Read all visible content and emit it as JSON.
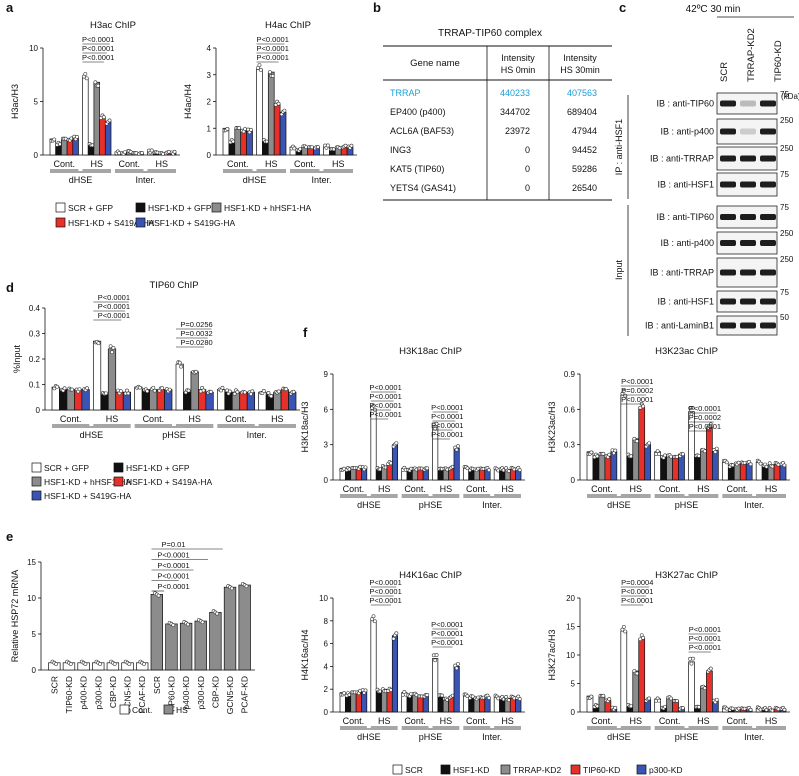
{
  "panel_letters": [
    "a",
    "b",
    "c",
    "d",
    "e",
    "f"
  ],
  "colors": {
    "SCR": "#ffffff",
    "HSF1-KD": "#111111",
    "grey": "#8c8c8c",
    "red": "#e8302a",
    "blue": "#3a54b4",
    "highlight": "#1aa0d6"
  },
  "legend_a": [
    {
      "label": "SCR + GFP",
      "color": "#ffffff"
    },
    {
      "label": "HSF1-KD + GFP",
      "color": "#111111"
    },
    {
      "label": "HSF1-KD + hHSF1-HA",
      "color": "#8c8c8c"
    },
    {
      "label": "HSF1-KD + S419A-HA",
      "color": "#e8302a"
    },
    {
      "label": "HSF1-KD + S419G-HA",
      "color": "#3a54b4"
    }
  ],
  "legend_d": [
    {
      "label": "SCR + GFP",
      "color": "#ffffff"
    },
    {
      "label": "HSF1-KD + GFP",
      "color": "#111111"
    },
    {
      "label": "HSF1-KD + hHSF1-HA",
      "color": "#8c8c8c"
    },
    {
      "label": "HSF1-KD + S419A-HA",
      "color": "#e8302a"
    },
    {
      "label": "HSF1-KD + S419G-HA",
      "color": "#3a54b4"
    }
  ],
  "legend_e": [
    {
      "label": "Cont.",
      "color": "#ffffff"
    },
    {
      "label": "HS",
      "color": "#8c8c8c"
    }
  ],
  "legend_f": [
    {
      "label": "SCR",
      "color": "#ffffff"
    },
    {
      "label": "HSF1-KD",
      "color": "#111111"
    },
    {
      "label": "TRRAP-KD2",
      "color": "#8c8c8c"
    },
    {
      "label": "TIP60-KD",
      "color": "#e8302a"
    },
    {
      "label": "p300-KD",
      "color": "#3a54b4"
    }
  ],
  "table_b": {
    "title": "TRRAP-TIP60 complex",
    "headers": [
      "Gene name",
      "Intensity HS 0min",
      "Intensity HS 30min"
    ],
    "rows": [
      [
        "TRRAP",
        "440233",
        "407563"
      ],
      [
        "EP400 (p400)",
        "344702",
        "689404"
      ],
      [
        "ACL6A (BAF53)",
        "23972",
        "47944"
      ],
      [
        "ING3",
        "0",
        "94452"
      ],
      [
        "KAT5 (TIP60)",
        "0",
        "59286"
      ],
      [
        "YETS4 (GAS41)",
        "0",
        "26540"
      ]
    ]
  },
  "blot_c": {
    "title": "42ºC 30 min",
    "lanes": [
      "SCR",
      "TRRAP-KD2",
      "TIP60-KD"
    ],
    "kda_label": "(kDa)",
    "ip_label": "IP : anti-HSF1",
    "input_label": "Input",
    "rows": [
      {
        "label": "IB : anti-TIP60",
        "marker": "75"
      },
      {
        "label": "IB : anti-p400",
        "marker": "250"
      },
      {
        "label": "IB : anti-TRRAP",
        "marker": "250"
      },
      {
        "label": "IB : anti-HSF1",
        "marker": "75"
      },
      {
        "label": "IB : anti-TIP60",
        "marker": "75"
      },
      {
        "label": "IB : anti-p400",
        "marker": "250"
      },
      {
        "label": "IB : anti-TRRAP",
        "marker": "250"
      },
      {
        "label": "IB : anti-HSF1",
        "marker": "75"
      },
      {
        "label": "IB : anti-LaminB1",
        "marker": "50"
      }
    ]
  },
  "chart_data": [
    {
      "id": "a1",
      "type": "bar",
      "title": "H3ac ChIP",
      "ylabel": "H3ac/H3",
      "ylim": [
        0,
        10
      ],
      "yticks": [
        "0",
        "5",
        "10"
      ],
      "groups": [
        "Cont.",
        "HS",
        "Cont.",
        "HS"
      ],
      "regions": [
        "dHSE",
        "Inter."
      ],
      "series": [
        {
          "name": "SCR + GFP",
          "values": [
            1.5,
            7.2,
            0.3,
            0.3
          ]
        },
        {
          "name": "HSF1-KD + GFP",
          "values": [
            1.0,
            0.9,
            0.2,
            0.2
          ]
        },
        {
          "name": "HSF1-KD + hHSF1-HA",
          "values": [
            1.5,
            6.8,
            0.3,
            0.2
          ]
        },
        {
          "name": "HSF1-KD + S419A-HA",
          "values": [
            1.4,
            3.5,
            0.2,
            0.2
          ]
        },
        {
          "name": "HSF1-KD + S419G-HA",
          "values": [
            1.6,
            3.1,
            0.2,
            0.2
          ]
        }
      ],
      "pvalues": [
        "P<0.0001",
        "P<0.0001",
        "P<0.0001"
      ]
    },
    {
      "id": "a2",
      "type": "bar",
      "title": "H4ac ChIP",
      "ylabel": "H4ac/H4",
      "ylim": [
        0,
        4
      ],
      "yticks": [
        "0",
        "1",
        "2",
        "3",
        "4"
      ],
      "groups": [
        "Cont.",
        "HS",
        "Cont.",
        "HS"
      ],
      "regions": [
        "dHSE",
        "Inter."
      ],
      "series": [
        {
          "name": "SCR + GFP",
          "values": [
            1.0,
            3.2,
            0.3,
            0.3
          ]
        },
        {
          "name": "HSF1-KD + GFP",
          "values": [
            0.5,
            0.5,
            0.2,
            0.2
          ]
        },
        {
          "name": "HSF1-KD + hHSF1-HA",
          "values": [
            1.0,
            3.1,
            0.3,
            0.3
          ]
        },
        {
          "name": "HSF1-KD + S419A-HA",
          "values": [
            0.9,
            1.9,
            0.3,
            0.3
          ]
        },
        {
          "name": "HSF1-KD + S419G-HA",
          "values": [
            0.9,
            1.6,
            0.3,
            0.3
          ]
        }
      ],
      "pvalues": [
        "P<0.0001",
        "P<0.0001",
        "P<0.0001"
      ]
    },
    {
      "id": "d",
      "type": "bar",
      "title": "TIP60 ChIP",
      "ylabel": "%Input",
      "ylim": [
        0,
        0.4
      ],
      "yticks": [
        "0",
        "0.1",
        "0.2",
        "0.3",
        "0.4"
      ],
      "groups": [
        "Cont.",
        "HS",
        "Cont.",
        "HS",
        "Cont.",
        "HS"
      ],
      "regions": [
        "dHSE",
        "pHSE",
        "Inter."
      ],
      "series": [
        {
          "name": "SCR + GFP",
          "values": [
            0.09,
            0.27,
            0.09,
            0.18,
            0.08,
            0.07
          ]
        },
        {
          "name": "HSF1-KD + GFP",
          "values": [
            0.08,
            0.06,
            0.08,
            0.07,
            0.07,
            0.06
          ]
        },
        {
          "name": "HSF1-KD + hHSF1-HA",
          "values": [
            0.08,
            0.24,
            0.08,
            0.15,
            0.07,
            0.07
          ]
        },
        {
          "name": "HSF1-KD + S419A-HA",
          "values": [
            0.08,
            0.07,
            0.08,
            0.08,
            0.07,
            0.08
          ]
        },
        {
          "name": "HSF1-KD + S419G-HA",
          "values": [
            0.08,
            0.07,
            0.08,
            0.07,
            0.07,
            0.07
          ]
        }
      ],
      "pvalues": [
        "P<0.0001",
        "P<0.0001",
        "P<0.0001",
        "P=0.0256",
        "P=0.0032",
        "P=0.0280"
      ]
    },
    {
      "id": "e",
      "type": "bar",
      "title": "",
      "ylabel": "Relative HSP72 mRNA",
      "ylim": [
        0,
        15
      ],
      "yticks": [
        "0",
        "5",
        "10",
        "15"
      ],
      "categories": [
        "SCR",
        "TIP60-KD",
        "p400-KD",
        "p300-KD",
        "CBP-KD",
        "GCN5-KD",
        "PCAF-KD",
        "SCR",
        "TIP60-KD",
        "p400-KD",
        "p300-KD",
        "CBP-KD",
        "GCN5-KD",
        "PCAF-KD"
      ],
      "values": [
        1.0,
        1.0,
        1.0,
        1.0,
        1.0,
        1.0,
        1.0,
        10.5,
        6.4,
        6.5,
        6.8,
        8.0,
        11.5,
        11.8
      ],
      "conditions": [
        "Cont.",
        "Cont.",
        "Cont.",
        "Cont.",
        "Cont.",
        "Cont.",
        "Cont.",
        "HS",
        "HS",
        "HS",
        "HS",
        "HS",
        "HS",
        "HS"
      ],
      "pvalues": [
        "P=0.01",
        "P<0.0001",
        "P<0.0001",
        "P<0.0001",
        "P<0.0001"
      ]
    },
    {
      "id": "f1",
      "type": "bar",
      "title": "H3K18ac ChIP",
      "ylabel": "H3K18ac/H3",
      "ylim": [
        0,
        9
      ],
      "yticks": [
        "0",
        "3",
        "6",
        "9"
      ],
      "groups": [
        "Cont.",
        "HS",
        "Cont.",
        "HS",
        "Cont.",
        "HS"
      ],
      "regions": [
        "dHSE",
        "pHSE",
        "Inter."
      ],
      "series": [
        {
          "name": "SCR",
          "values": [
            1.0,
            6.0,
            1.0,
            4.5,
            1.0,
            0.9
          ]
        },
        {
          "name": "HSF1-KD",
          "values": [
            0.9,
            0.9,
            0.9,
            0.9,
            0.9,
            0.9
          ]
        },
        {
          "name": "TRRAP-KD2",
          "values": [
            1.0,
            1.2,
            0.9,
            1.0,
            0.9,
            0.9
          ]
        },
        {
          "name": "TIP60-KD",
          "values": [
            1.0,
            1.4,
            1.0,
            1.0,
            0.9,
            0.9
          ]
        },
        {
          "name": "p300-KD",
          "values": [
            1.0,
            3.0,
            1.0,
            2.7,
            0.9,
            0.9
          ]
        }
      ],
      "pvalues": [
        "P<0.0001",
        "P<0.0001",
        "P<0.0001",
        "P<0.0001",
        "P<0.0001",
        "P<0.0001",
        "P<0.0001",
        "P<0.0001"
      ]
    },
    {
      "id": "f2",
      "type": "bar",
      "title": "H3K23ac ChIP",
      "ylabel": "H3K23ac/H3",
      "ylim": [
        0,
        0.9
      ],
      "yticks": [
        "0",
        "0.3",
        "0.6",
        "0.9"
      ],
      "groups": [
        "Cont.",
        "HS",
        "Cont.",
        "HS",
        "Cont.",
        "HS"
      ],
      "regions": [
        "dHSE",
        "pHSE",
        "Inter."
      ],
      "series": [
        {
          "name": "SCR",
          "values": [
            0.24,
            0.72,
            0.24,
            0.58,
            0.15,
            0.15
          ]
        },
        {
          "name": "HSF1-KD",
          "values": [
            0.2,
            0.2,
            0.2,
            0.2,
            0.12,
            0.12
          ]
        },
        {
          "name": "TRRAP-KD2",
          "values": [
            0.22,
            0.35,
            0.2,
            0.26,
            0.14,
            0.13
          ]
        },
        {
          "name": "TIP60-KD",
          "values": [
            0.2,
            0.62,
            0.2,
            0.45,
            0.14,
            0.13
          ]
        },
        {
          "name": "p300-KD",
          "values": [
            0.24,
            0.3,
            0.22,
            0.25,
            0.14,
            0.13
          ]
        }
      ],
      "pvalues": [
        "P<0.0001",
        "P=0.0002",
        "P<0.0001",
        "P<0.0001",
        "P=0.0002",
        "P<0.0001"
      ]
    },
    {
      "id": "f3",
      "type": "bar",
      "title": "H4K16ac ChIP",
      "ylabel": "H4K16ac/H4",
      "ylim": [
        0,
        10
      ],
      "yticks": [
        "0",
        "2",
        "4",
        "6",
        "8",
        "10"
      ],
      "groups": [
        "Cont.",
        "HS",
        "Cont.",
        "HS",
        "Cont.",
        "HS"
      ],
      "regions": [
        "dHSE",
        "pHSE",
        "Inter."
      ],
      "series": [
        {
          "name": "SCR",
          "values": [
            1.7,
            8.0,
            1.7,
            4.7,
            1.4,
            1.3
          ]
        },
        {
          "name": "HSF1-KD",
          "values": [
            1.5,
            1.8,
            1.5,
            1.4,
            1.3,
            1.2
          ]
        },
        {
          "name": "TRRAP-KD2",
          "values": [
            1.7,
            2.0,
            1.5,
            1.2,
            1.2,
            1.2
          ]
        },
        {
          "name": "TIP60-KD",
          "values": [
            1.7,
            1.9,
            1.4,
            1.3,
            1.2,
            1.2
          ]
        },
        {
          "name": "p300-KD",
          "values": [
            1.8,
            6.7,
            1.5,
            4.0,
            1.3,
            1.2
          ]
        }
      ],
      "pvalues": [
        "P<0.0001",
        "P<0.0001",
        "P<0.0001",
        "P<0.0001",
        "P<0.0001",
        "P<0.0001"
      ]
    },
    {
      "id": "f4",
      "type": "bar",
      "title": "H3K27ac ChIP",
      "ylabel": "H3K27ac/H3",
      "ylim": [
        0,
        20
      ],
      "yticks": [
        "0",
        "5",
        "10",
        "15",
        "20"
      ],
      "groups": [
        "Cont.",
        "HS",
        "Cont.",
        "HS",
        "Cont.",
        "HS"
      ],
      "regions": [
        "dHSE",
        "pHSE",
        "Inter."
      ],
      "series": [
        {
          "name": "SCR",
          "values": [
            2.8,
            14.2,
            2.3,
            8.8,
            0.6,
            0.6
          ]
        },
        {
          "name": "HSF1-KD",
          "values": [
            1.0,
            1.0,
            0.8,
            0.8,
            0.5,
            0.5
          ]
        },
        {
          "name": "TRRAP-KD2",
          "values": [
            2.8,
            7.2,
            2.4,
            4.5,
            0.5,
            0.5
          ]
        },
        {
          "name": "TIP60-KD",
          "values": [
            2.0,
            12.9,
            2.0,
            7.2,
            0.5,
            0.5
          ]
        },
        {
          "name": "p300-KD",
          "values": [
            0.6,
            2.2,
            0.7,
            1.9,
            0.5,
            0.5
          ]
        }
      ],
      "pvalues": [
        "P=0.0004",
        "P<0.0001",
        "P<0.0001",
        "P<0.0001",
        "P<0.0001",
        "P<0.0001",
        "P<0.0001",
        "P<0.0001"
      ]
    }
  ]
}
